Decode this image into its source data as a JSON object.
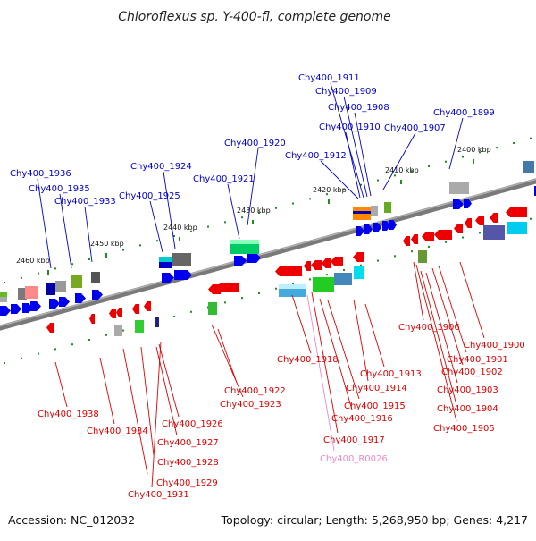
{
  "title": "Chloroflexus sp. Y-400-fl, complete genome",
  "footer": {
    "accession": "Accession: NC_012032",
    "topology": "Topology: circular; Length: 5,268,950 bp; Genes: 4,217"
  },
  "colors": {
    "forward_label": "#0000cc",
    "reverse_label": "#dd0000",
    "rna_label": "#ee88cc",
    "axis": "#808080",
    "tick": "#228b22"
  },
  "kbp_marks": [
    "2400 kbp",
    "2410 kbp",
    "2420 kbp",
    "2430 kbp",
    "2440 kbp",
    "2450 kbp",
    "2460 kbp"
  ],
  "labels": {
    "top": [
      "Chy400_1936",
      "Chy400_1935",
      "Chy400_1933",
      "Chy400_1925",
      "Chy400_1924",
      "Chy400_1921",
      "Chy400_1920",
      "Chy400_1912",
      "Chy400_1911",
      "Chy400_1909",
      "Chy400_1908",
      "Chy400_1910",
      "Chy400_1907",
      "Chy400_1899"
    ],
    "bottom": [
      "Chy400_1938",
      "Chy400_1934",
      "Chy400_1926",
      "Chy400_1927",
      "Chy400_1928",
      "Chy400_1929",
      "Chy400_1931",
      "Chy400_1922",
      "Chy400_1923",
      "Chy400_1918",
      "Chy400_1913",
      "Chy400_1914",
      "Chy400_1915",
      "Chy400_1916",
      "Chy400_1917",
      "Chy400_R0026",
      "Chy400_1906",
      "Chy400_1900",
      "Chy400_1901",
      "Chy400_1902",
      "Chy400_1903",
      "Chy400_1904",
      "Chy400_1905"
    ]
  }
}
